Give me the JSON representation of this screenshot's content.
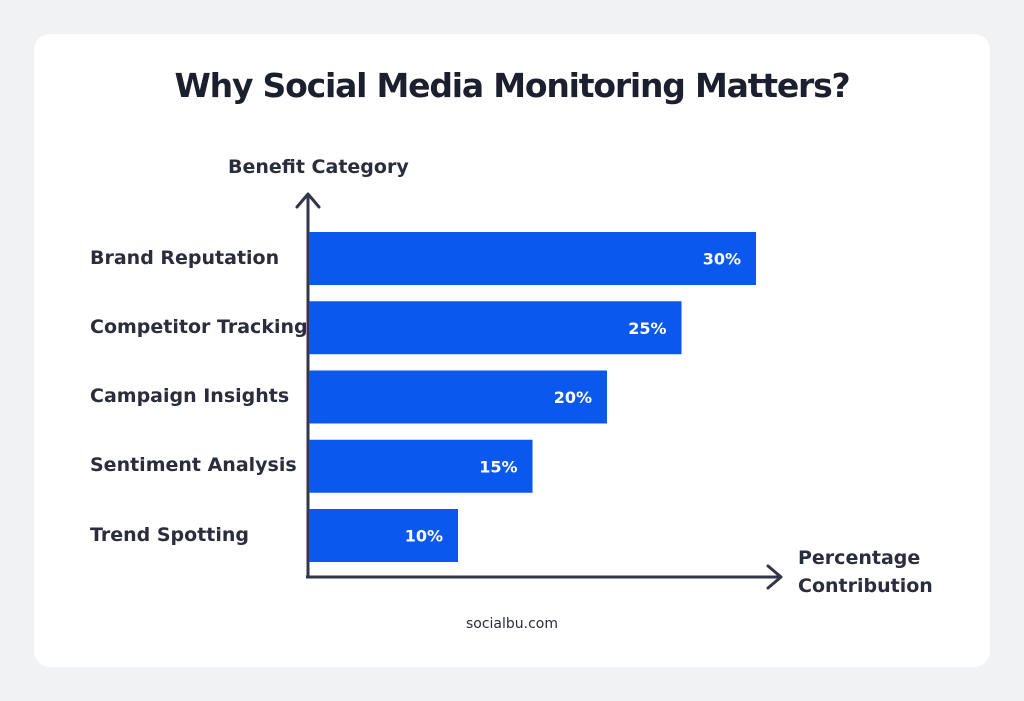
{
  "title": "Why Social Media Monitoring Matters?",
  "footer": "socialbu.com",
  "colors": {
    "bar": "#0a58ee",
    "axis": "#33364a",
    "text": "#2a2d3c",
    "bar_label": "#ffffff"
  },
  "chart_data": {
    "type": "bar",
    "orientation": "horizontal",
    "ylabel": "Benefit Category",
    "xlabel_lines": [
      "Percentage",
      "Contribution"
    ],
    "categories": [
      "Brand Reputation",
      "Competitor Tracking",
      "Campaign Insights",
      "Sentiment Analysis",
      "Trend Spotting"
    ],
    "values": [
      30,
      25,
      20,
      15,
      10
    ],
    "data_labels": [
      "30%",
      "25%",
      "20%",
      "15%",
      "10%"
    ],
    "grid": false,
    "legend": "none"
  }
}
